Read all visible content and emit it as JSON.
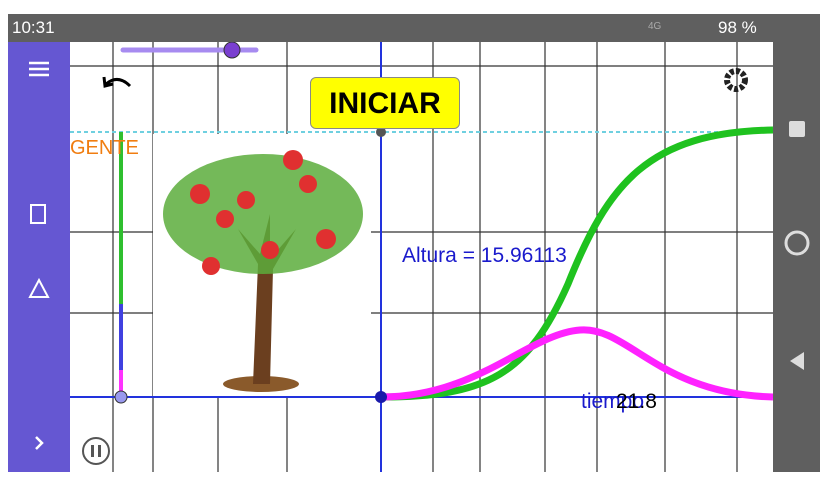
{
  "status_bar": {
    "time": "10:31",
    "network": "4G",
    "battery": "98 %"
  },
  "toolbar": {
    "button": "INICIAR"
  },
  "graphics": {
    "label_gente": "GENTE",
    "altura_label": "Altura = 15.96113",
    "tiempo_label": "tiempo",
    "tiempo_value": "21.8"
  }
}
